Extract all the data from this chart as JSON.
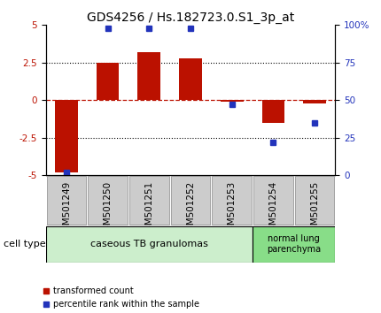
{
  "title": "GDS4256 / Hs.182723.0.S1_3p_at",
  "samples": [
    "GSM501249",
    "GSM501250",
    "GSM501251",
    "GSM501252",
    "GSM501253",
    "GSM501254",
    "GSM501255"
  ],
  "red_bars": [
    -4.8,
    2.5,
    3.2,
    2.8,
    -0.1,
    -1.5,
    -0.2
  ],
  "blue_dots_pct": [
    2,
    98,
    98,
    98,
    47,
    22,
    35
  ],
  "ylim": [
    -5,
    5
  ],
  "yticks_left": [
    -5,
    -2.5,
    0,
    2.5,
    5
  ],
  "ytick_labels_left": [
    "-5",
    "-2.5",
    "0",
    "2.5",
    "5"
  ],
  "yticks_right_pct": [
    0,
    25,
    50,
    75,
    100
  ],
  "ytick_labels_right": [
    "0",
    "25",
    "50",
    "75",
    "100%"
  ],
  "red_color": "#bb1100",
  "blue_color": "#2233bb",
  "bar_width": 0.55,
  "group1_label": "caseous TB granulomas",
  "group2_label": "normal lung\nparenchyma",
  "cell_type_label": "cell type",
  "legend_red": "transformed count",
  "legend_blue": "percentile rank within the sample",
  "title_fontsize": 10,
  "tick_fontsize": 7.5,
  "label_fontsize": 8,
  "bg_color": "#ffffff",
  "group1_bg": "#cceecc",
  "group2_bg": "#88dd88",
  "sample_box_bg": "#cccccc",
  "sample_box_edge": "#888888"
}
